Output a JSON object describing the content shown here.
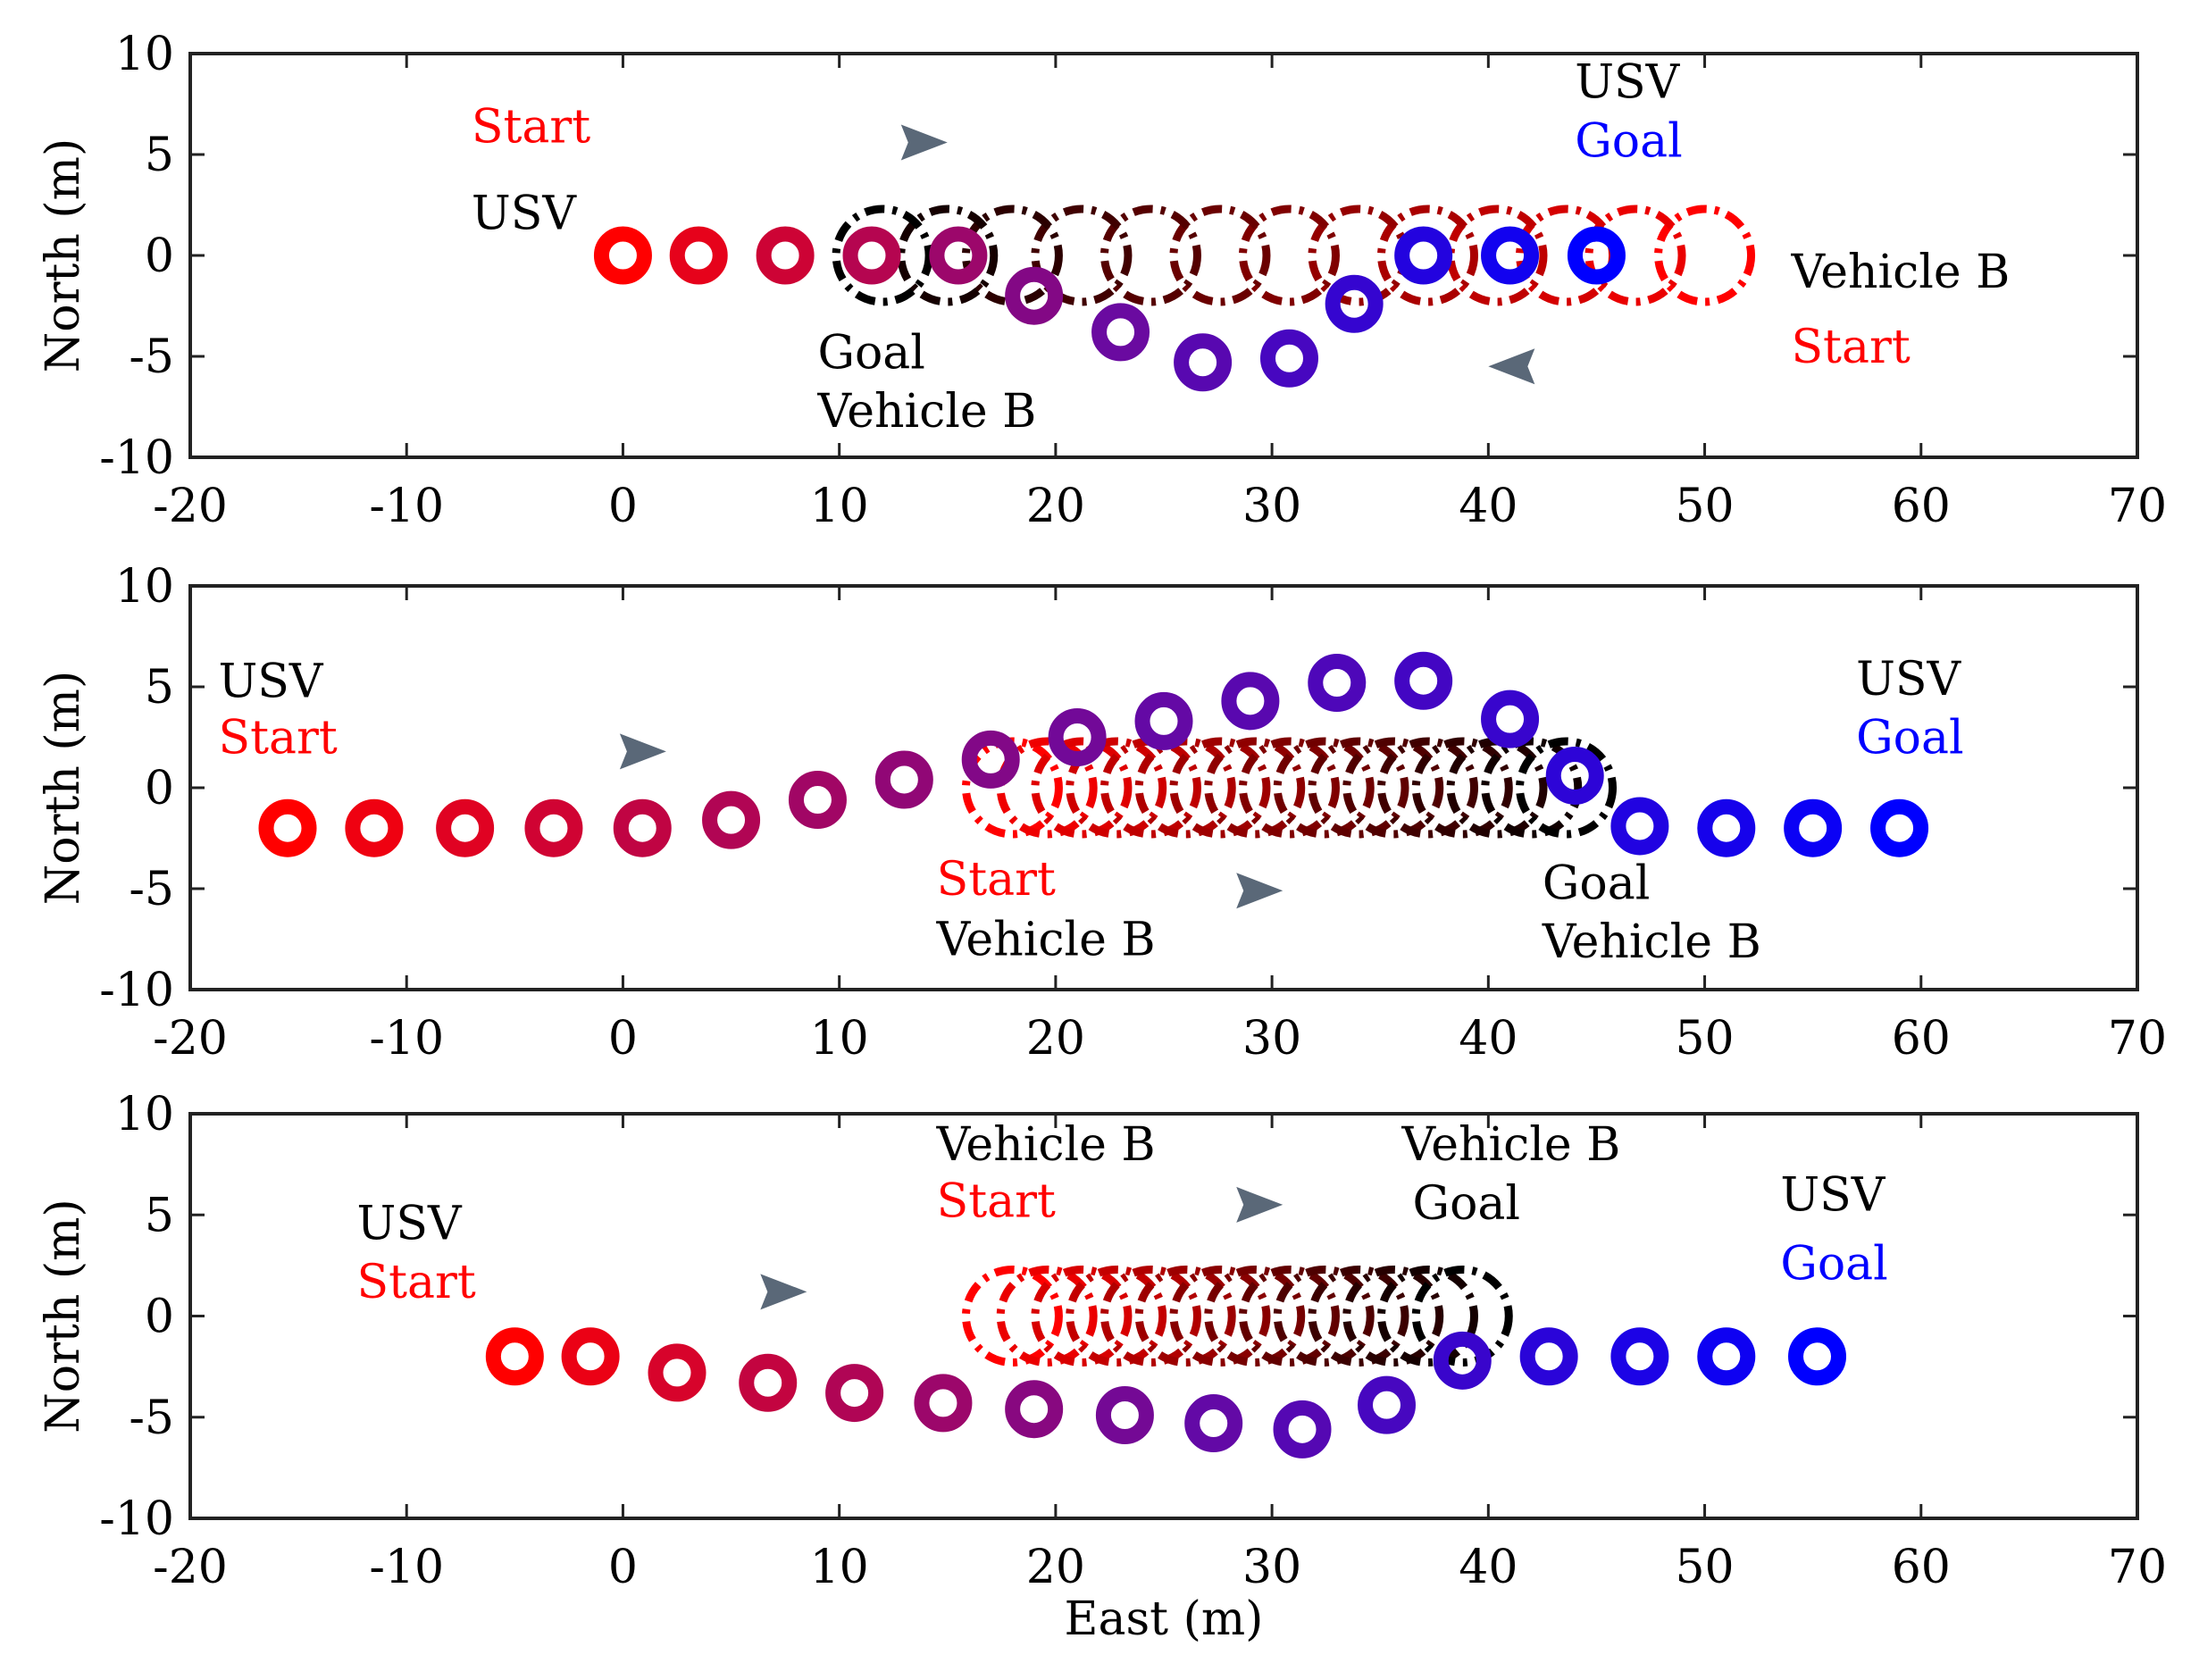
{
  "chart_data": [
    {
      "type": "scatter",
      "xlabel": "",
      "ylabel": "North (m)",
      "xlim": [
        -20,
        70
      ],
      "ylim": [
        -10,
        10
      ],
      "xticks": [
        -20,
        -10,
        0,
        10,
        20,
        30,
        40,
        50,
        60,
        70
      ],
      "yticks": [
        10,
        5,
        0,
        -5,
        -10
      ],
      "xtick_labels": [
        "-20",
        "-10",
        "0",
        "10",
        "20",
        "30",
        "40",
        "50",
        "60",
        "70"
      ],
      "ytick_labels": [
        "10",
        "5",
        "0",
        "-5",
        "-10"
      ],
      "grid": false,
      "series": [
        {
          "marker": "solid-ring",
          "color_start": "#ff0000",
          "color_mid": "#6a0aa0",
          "color_end": "#0000ff",
          "x": [
            0,
            3.5,
            7.5,
            11.5,
            15.5,
            19,
            23,
            26.8,
            30.8,
            33.8,
            37,
            41,
            45
          ],
          "y": [
            0,
            0,
            0,
            0,
            0,
            -2,
            -3.8,
            -5.3,
            -5.1,
            -2.4,
            0,
            0,
            0
          ]
        },
        {
          "marker": "dashed-ring",
          "color_start": "#ff0000",
          "color_end": "#000000",
          "x": [
            50,
            46.8,
            43.6,
            40.4,
            37.2,
            34,
            30.8,
            27.6,
            24.4,
            21.2,
            18,
            15,
            12
          ],
          "y": [
            0,
            0,
            0,
            0,
            0,
            0,
            0,
            0,
            0,
            0,
            0,
            0,
            0
          ]
        }
      ],
      "annotations": [
        {
          "text": "Start",
          "color": "#ff0000",
          "x": -7,
          "y": 5.6
        },
        {
          "text": "USV",
          "color": "#000000",
          "x": -7,
          "y": 1.3
        },
        {
          "text": "USV",
          "color": "#000000",
          "x": 44,
          "y": 7.8
        },
        {
          "text": "Goal",
          "color": "#0000ff",
          "x": 44,
          "y": 4.9
        },
        {
          "text": "Vehicle B",
          "color": "#000000",
          "x": 54,
          "y": -1.6
        },
        {
          "text": "Start",
          "color": "#ff0000",
          "x": 54,
          "y": -5.3
        },
        {
          "text": "Goal",
          "color": "#000000",
          "x": 9,
          "y": -5.6
        },
        {
          "text": "Vehicle B",
          "color": "#000000",
          "x": 9,
          "y": -8.5
        }
      ],
      "arrows": [
        {
          "x1": -1,
          "y1": 5.6,
          "x2": 15,
          "y2": 5.6
        },
        {
          "x1": 53.5,
          "y1": -5.5,
          "x2": 40,
          "y2": -5.5
        }
      ]
    },
    {
      "type": "scatter",
      "xlabel": "",
      "ylabel": "North (m)",
      "xlim": [
        -20,
        70
      ],
      "ylim": [
        -10,
        10
      ],
      "xticks": [
        -20,
        -10,
        0,
        10,
        20,
        30,
        40,
        50,
        60,
        70
      ],
      "yticks": [
        10,
        5,
        0,
        -5,
        -10
      ],
      "xtick_labels": [
        "-20",
        "-10",
        "0",
        "10",
        "20",
        "30",
        "40",
        "50",
        "60",
        "70"
      ],
      "ytick_labels": [
        "10",
        "5",
        "0",
        "-5",
        "-10"
      ],
      "grid": false,
      "series": [
        {
          "marker": "solid-ring",
          "color_start": "#ff0000",
          "color_mid": "#6a0aa0",
          "color_end": "#0000ff",
          "x": [
            -15.5,
            -11.5,
            -7.3,
            -3.2,
            0.9,
            5,
            9,
            13,
            17,
            21,
            25,
            29,
            33,
            37,
            41,
            44,
            47,
            51,
            55,
            59
          ],
          "y": [
            -2,
            -2,
            -2,
            -2,
            -2,
            -1.6,
            -0.6,
            0.4,
            1.4,
            2.5,
            3.3,
            4.3,
            5.2,
            5.3,
            3.4,
            0.6,
            -1.9,
            -2,
            -2,
            -2
          ]
        },
        {
          "marker": "dashed-ring",
          "color_start": "#ff0000",
          "color_end": "#000000",
          "x": [
            18,
            19.6,
            21.2,
            22.8,
            24.4,
            26,
            27.6,
            29.2,
            30.8,
            32.4,
            34,
            35.6,
            37.2,
            38.8,
            40.4,
            42,
            43.6
          ],
          "y": [
            0,
            0,
            0,
            0,
            0,
            0,
            0,
            0,
            0,
            0,
            0,
            0,
            0,
            0,
            0,
            0,
            0
          ]
        }
      ],
      "annotations": [
        {
          "text": "USV",
          "color": "#000000",
          "x": -18.7,
          "y": 4.5
        },
        {
          "text": "Start",
          "color": "#ff0000",
          "x": -18.7,
          "y": 1.7
        },
        {
          "text": "USV",
          "color": "#000000",
          "x": 57,
          "y": 4.6
        },
        {
          "text": "Goal",
          "color": "#0000ff",
          "x": 57,
          "y": 1.7
        },
        {
          "text": "Start",
          "color": "#ff0000",
          "x": 14.5,
          "y": -5.3
        },
        {
          "text": "Vehicle B",
          "color": "#000000",
          "x": 14.5,
          "y": -8.3
        },
        {
          "text": "Goal",
          "color": "#000000",
          "x": 42.5,
          "y": -5.5
        },
        {
          "text": "Vehicle B",
          "color": "#000000",
          "x": 42.5,
          "y": -8.4
        }
      ],
      "arrows": [
        {
          "x1": -12.5,
          "y1": 1.8,
          "x2": 2,
          "y2": 1.8
        },
        {
          "x1": 20.5,
          "y1": -5.1,
          "x2": 30.5,
          "y2": -5.1
        }
      ]
    },
    {
      "type": "scatter",
      "xlabel": "East (m)",
      "ylabel": "North (m)",
      "xlim": [
        -20,
        70
      ],
      "ylim": [
        -10,
        10
      ],
      "xticks": [
        -20,
        -10,
        0,
        10,
        20,
        30,
        40,
        50,
        60,
        70
      ],
      "yticks": [
        10,
        5,
        0,
        -5,
        -10
      ],
      "xtick_labels": [
        "-20",
        "-10",
        "0",
        "10",
        "20",
        "30",
        "40",
        "50",
        "60",
        "70"
      ],
      "ytick_labels": [
        "10",
        "5",
        "0",
        "-5",
        "-10"
      ],
      "grid": false,
      "series": [
        {
          "marker": "solid-ring",
          "color_start": "#ff0000",
          "color_mid": "#6a0aa0",
          "color_end": "#0000ff",
          "x": [
            -5,
            -1.5,
            2.5,
            6.7,
            10.7,
            14.8,
            19,
            23.2,
            27.3,
            31.4,
            35.3,
            38.8,
            42.8,
            47,
            51,
            55.2
          ],
          "y": [
            -2,
            -2,
            -2.8,
            -3.3,
            -3.8,
            -4.3,
            -4.6,
            -4.9,
            -5.3,
            -5.6,
            -4.4,
            -2.2,
            -2,
            -2,
            -2,
            -2
          ]
        },
        {
          "marker": "dashed-ring",
          "color_start": "#ff0000",
          "color_end": "#000000",
          "x": [
            18,
            19.6,
            21.2,
            22.8,
            24.4,
            26,
            27.6,
            29.2,
            30.8,
            32.4,
            34,
            35.6,
            37.2,
            38.8
          ],
          "y": [
            0,
            0,
            0,
            0,
            0,
            0,
            0,
            0,
            0,
            0,
            0,
            0,
            0,
            0
          ]
        }
      ],
      "annotations": [
        {
          "text": "Vehicle B",
          "color": "#000000",
          "x": 14.5,
          "y": 7.7
        },
        {
          "text": "Start",
          "color": "#ff0000",
          "x": 14.5,
          "y": 4.9
        },
        {
          "text": "Vehicle B",
          "color": "#000000",
          "x": 36,
          "y": 7.7
        },
        {
          "text": "Goal",
          "color": "#000000",
          "x": 36.5,
          "y": 4.8
        },
        {
          "text": "USV",
          "color": "#000000",
          "x": -12.3,
          "y": 3.8
        },
        {
          "text": "Start",
          "color": "#ff0000",
          "x": -12.3,
          "y": 0.9
        },
        {
          "text": "USV",
          "color": "#000000",
          "x": 53.5,
          "y": 5.2
        },
        {
          "text": "Goal",
          "color": "#0000ff",
          "x": 53.5,
          "y": 1.8
        }
      ],
      "arrows": [
        {
          "x1": 20.5,
          "y1": 5.5,
          "x2": 30.5,
          "y2": 5.5
        },
        {
          "x1": -6.5,
          "y1": 1.2,
          "x2": 8.5,
          "y2": 1.2
        }
      ]
    }
  ]
}
